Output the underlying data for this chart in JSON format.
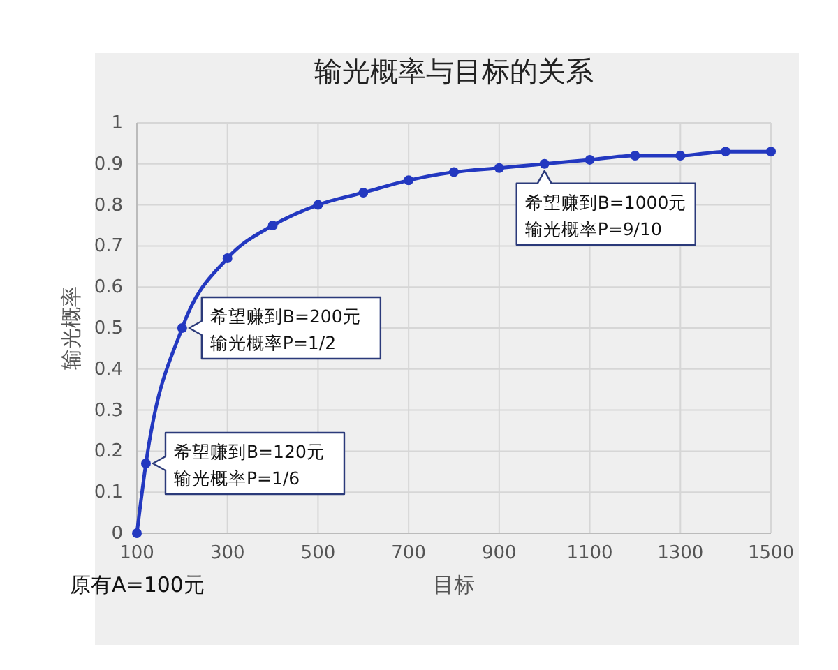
{
  "chart_data": {
    "type": "line",
    "title": "输光概率与目标的关系",
    "xlabel": "目标",
    "ylabel": "输光概率",
    "x": [
      100,
      120,
      200,
      300,
      400,
      500,
      600,
      700,
      800,
      900,
      1000,
      1100,
      1200,
      1300,
      1400,
      1500
    ],
    "series": [
      {
        "color": "#2338c0",
        "values": [
          0,
          0.17,
          0.5,
          0.67,
          0.75,
          0.8,
          0.83,
          0.86,
          0.88,
          0.89,
          0.9,
          0.91,
          0.92,
          0.92,
          0.93,
          0.93
        ]
      }
    ],
    "xlim": [
      100,
      1500
    ],
    "xticks": [
      100,
      300,
      500,
      700,
      900,
      1100,
      1300,
      1500
    ],
    "ylim": [
      0,
      1
    ],
    "yticks": [
      0,
      0.1,
      0.2,
      0.3,
      0.4,
      0.5,
      0.6,
      0.7,
      0.8,
      0.9,
      1
    ],
    "grid": true,
    "marker": "circle",
    "line_style": "solid",
    "annotations": [
      "原有A=100元",
      {
        "text": "希望赚到B=120元",
        "x": 120,
        "y": 0.17
      },
      "输光概率P=1/6",
      {
        "text": "希望赚到B=200元",
        "x": 200,
        "y": 0.5
      },
      "输光概率P=1/2",
      {
        "text": "希望赚到B=1000元",
        "x": 1000,
        "y": 0.9
      },
      "输光概率P=9/10"
    ]
  }
}
